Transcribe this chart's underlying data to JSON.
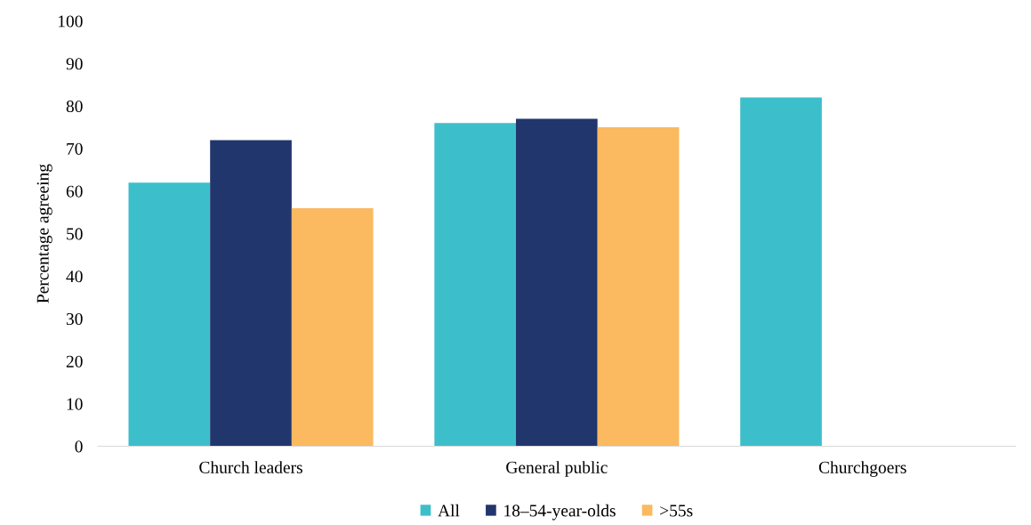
{
  "chart_data": {
    "type": "bar",
    "ylabel": "Percentage agreeing",
    "categories": [
      "Church leaders",
      "General public",
      "Churchgoers"
    ],
    "series": [
      {
        "name": "All",
        "color": "#3dbfcb",
        "values": [
          62,
          76,
          82
        ]
      },
      {
        "name": "18–54-year-olds",
        "color": "#21366d",
        "values": [
          72,
          77,
          null
        ]
      },
      {
        "name": ">55s",
        "color": "#fbb960",
        "values": [
          56,
          75,
          null
        ]
      }
    ],
    "ylim": [
      0,
      100
    ],
    "yticks": [
      0,
      10,
      20,
      30,
      40,
      50,
      60,
      70,
      80,
      90,
      100
    ],
    "grid": false,
    "legend": "bottom"
  }
}
